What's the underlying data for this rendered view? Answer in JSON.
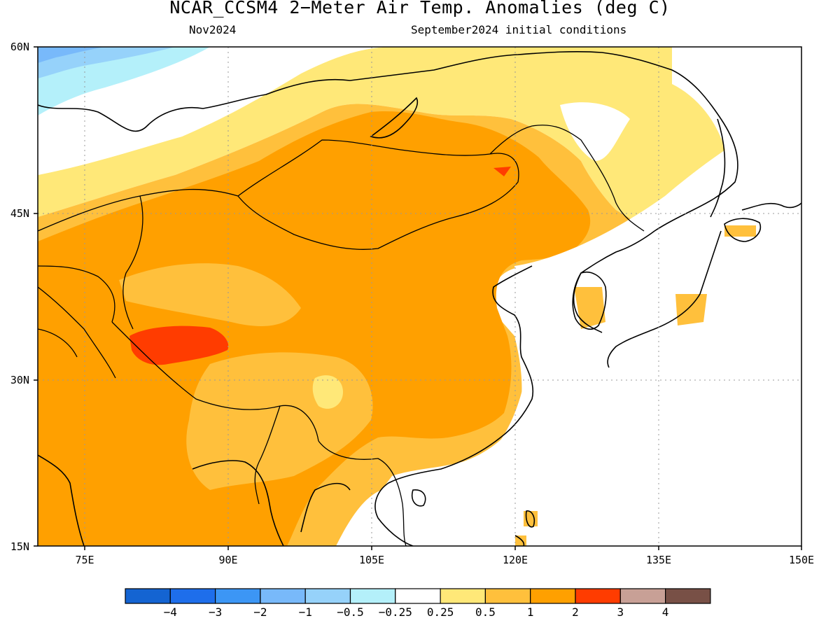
{
  "title": "NCAR_CCSM4 2−Meter Air Temp. Anomalies (deg C)",
  "subtitle_left": "Nov2024",
  "subtitle_right": "September2024 initial conditions",
  "lat_labels": [
    "60N",
    "45N",
    "30N",
    "15N"
  ],
  "lon_labels": [
    "75E",
    "90E",
    "105E",
    "120E",
    "135E",
    "150E"
  ],
  "colorbar": {
    "colors": [
      "#1464d2",
      "#1e6eeb",
      "#3c96f5",
      "#78b9fa",
      "#96d2fa",
      "#b4f0fa",
      "#ffffff",
      "#ffe878",
      "#ffc03c",
      "#ffa000",
      "#ff3c00",
      "#c8a096",
      "#785046"
    ],
    "labels": [
      "−4",
      "−3",
      "−2",
      "−1",
      "−0.5",
      "−0.25",
      "0.25",
      "0.5",
      "1",
      "2",
      "3",
      "4"
    ]
  },
  "map_data": {
    "projection": "equirectangular",
    "lon_range": [
      70,
      150
    ],
    "lat_range": [
      15,
      60
    ],
    "grid_lons": [
      75,
      90,
      105,
      120,
      135,
      150
    ],
    "grid_lats": [
      15,
      30,
      45,
      60
    ],
    "anomaly_regions": [
      {
        "level": "1 to 2",
        "description": "broad warm anomaly over Mongolia, China, Central Asia"
      },
      {
        "level": "2 to 3",
        "description": "Tibetan Plateau maximum"
      },
      {
        "level": "0.25 to 0.5",
        "description": "northern band over Siberia"
      },
      {
        "level": "-1 to -0.25",
        "description": "northwest corner"
      }
    ]
  }
}
